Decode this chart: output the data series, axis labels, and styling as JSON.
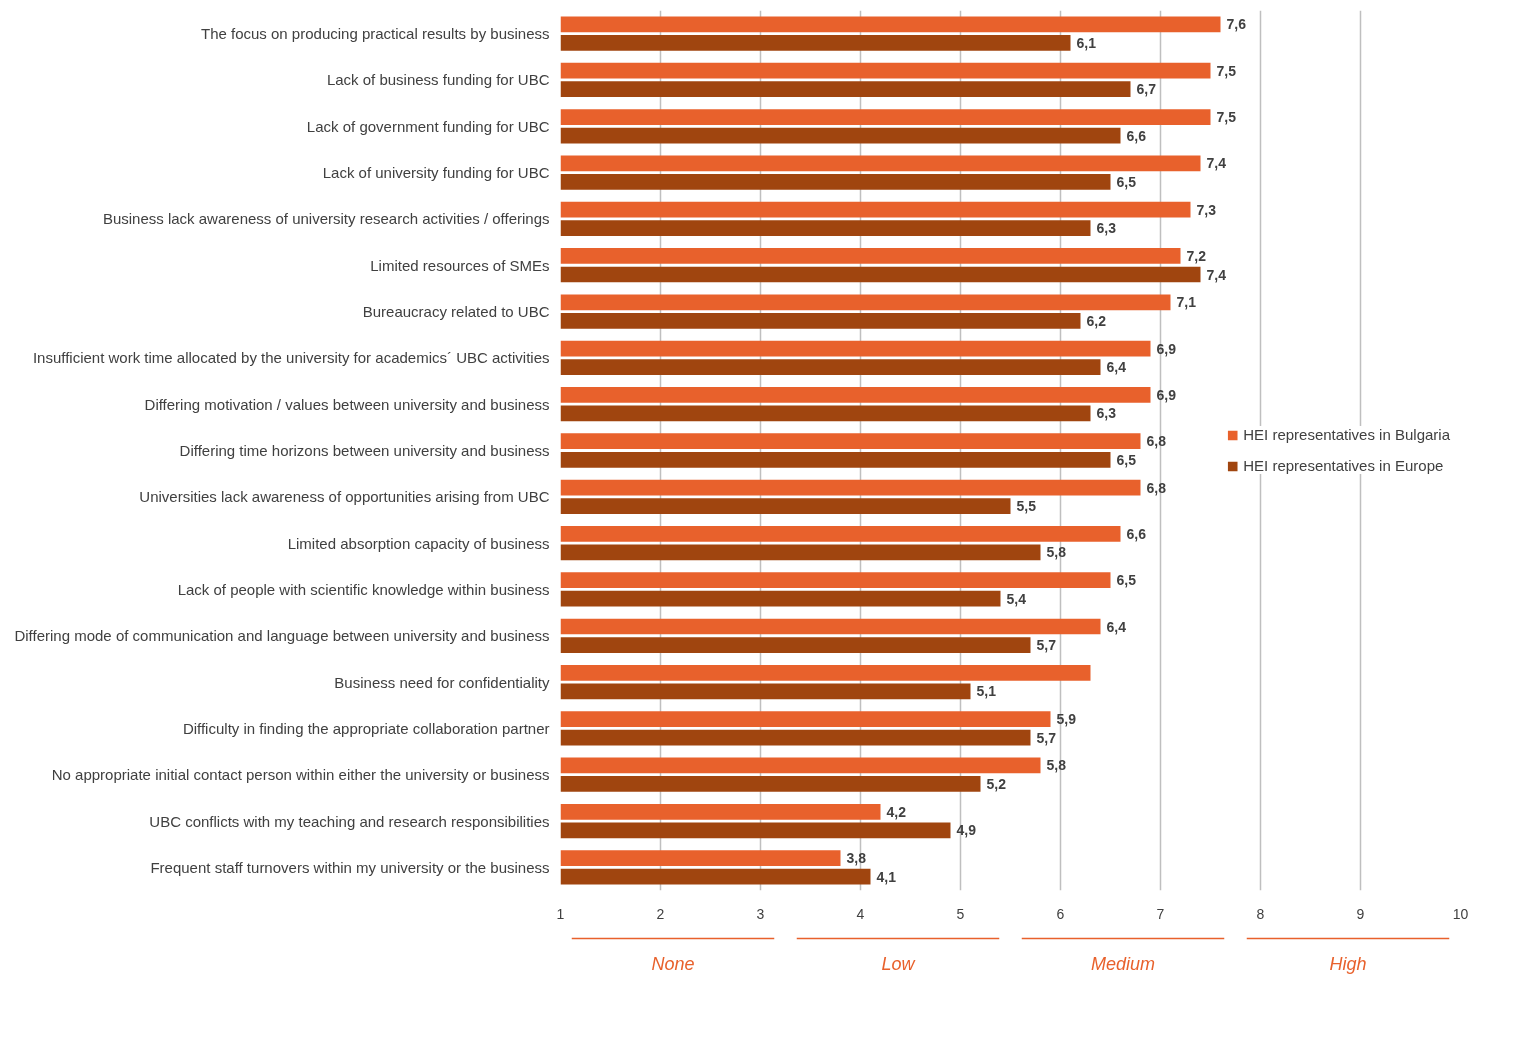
{
  "chart_data": {
    "type": "bar",
    "orientation": "horizontal",
    "categories": [
      "The focus on producing practical results by business",
      "Lack of business funding for UBC",
      "Lack of government funding for UBC",
      "Lack of university funding for UBC",
      "Business lack awareness of university research activities / offerings",
      "Limited resources of SMEs",
      "Bureaucracy related to UBC",
      "Insufficient work time allocated by the university for academics´ UBC activities",
      "Differing motivation / values between university and business",
      "Differing time horizons between university and business",
      "Universities lack awareness of opportunities arising from UBC",
      "Limited absorption capacity of business",
      "Lack of people with scientific knowledge within business",
      "Differing mode of communication and language between university and business",
      "Business need for confidentiality",
      "Difficulty in finding the appropriate collaboration partner",
      "No appropriate initial contact person within either the university or business",
      "UBC conflicts with my teaching and research responsibilities",
      "Frequent staff turnovers within my university or the business"
    ],
    "series": [
      {
        "name": "HEI representatives in Bulgaria",
        "color": "#e8612c",
        "values": [
          7.6,
          7.5,
          7.5,
          7.4,
          7.3,
          7.2,
          7.1,
          6.9,
          6.9,
          6.8,
          6.8,
          6.6,
          6.5,
          6.4,
          6.3,
          5.9,
          5.8,
          4.2,
          3.8
        ],
        "value_labels": [
          "7,6",
          "7,5",
          "7,5",
          "7,4",
          "7,3",
          "7,2",
          "7,1",
          "6,9",
          "6,9",
          "6,8",
          "6,8",
          "6,6",
          "6,5",
          "6,4",
          null,
          "5,9",
          "5,8",
          "4,2",
          "3,8"
        ]
      },
      {
        "name": "HEI representatives in Europe",
        "color": "#a0450f",
        "values": [
          6.1,
          6.7,
          6.6,
          6.5,
          6.3,
          7.4,
          6.2,
          6.4,
          6.3,
          6.5,
          5.5,
          5.8,
          5.4,
          5.7,
          5.1,
          5.7,
          5.2,
          4.9,
          4.1
        ],
        "value_labels": [
          "6,1",
          "6,7",
          "6,6",
          "6,5",
          "6,3",
          "7,4",
          "6,2",
          "6,4",
          "6,3",
          "6,5",
          "5,5",
          "5,8",
          "5,4",
          "5,7",
          "5,1",
          "5,7",
          "5,2",
          "4,9",
          "4,1"
        ]
      }
    ],
    "xlim": [
      1,
      10
    ],
    "xticks": [
      1,
      2,
      3,
      4,
      5,
      6,
      7,
      8,
      9,
      10
    ],
    "grid": "x",
    "legend": "right",
    "annotations": [
      "None",
      "Low",
      "Medium",
      "High"
    ]
  }
}
